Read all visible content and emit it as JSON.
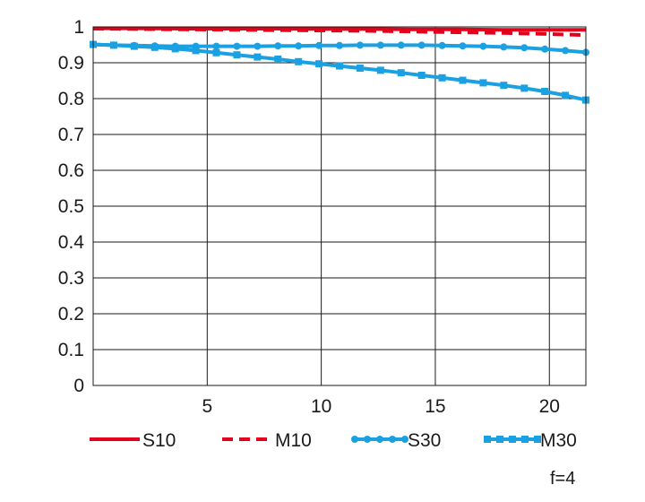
{
  "chart_data": {
    "type": "line",
    "xlim": [
      0,
      21.6
    ],
    "ylim": [
      0,
      1
    ],
    "grid": true,
    "x_ticks": [
      "5",
      "10",
      "15",
      "20"
    ],
    "y_ticks": [
      "0",
      "0.1",
      "0.2",
      "0.3",
      "0.4",
      "0.5",
      "0.6",
      "0.7",
      "0.8",
      "0.9",
      "1"
    ],
    "legend_position": "bottom",
    "note": "f=4",
    "series": [
      {
        "name": "S10",
        "color": "#e3001b",
        "style": "solid",
        "marker": "none",
        "x": [
          0,
          2,
          4,
          6,
          8,
          10,
          12,
          14,
          16,
          18,
          20,
          21.6
        ],
        "y": [
          0.996,
          0.996,
          0.995,
          0.995,
          0.995,
          0.994,
          0.994,
          0.993,
          0.993,
          0.992,
          0.992,
          0.992
        ]
      },
      {
        "name": "M10",
        "color": "#e3001b",
        "style": "dashed",
        "marker": "none",
        "x": [
          0,
          2,
          4,
          6,
          8,
          10,
          12,
          14,
          16,
          18,
          20,
          21.6
        ],
        "y": [
          0.995,
          0.994,
          0.993,
          0.992,
          0.991,
          0.99,
          0.989,
          0.987,
          0.985,
          0.983,
          0.98,
          0.977
        ]
      },
      {
        "name": "S30",
        "color": "#1ba1e2",
        "style": "solid",
        "marker": "circle",
        "x": [
          0,
          0.9,
          1.8,
          2.7,
          3.6,
          4.5,
          5.4,
          6.3,
          7.2,
          8.1,
          9.0,
          9.9,
          10.8,
          11.7,
          12.6,
          13.5,
          14.4,
          15.3,
          16.2,
          17.1,
          18.0,
          18.9,
          19.8,
          20.7,
          21.6
        ],
        "y": [
          0.951,
          0.949,
          0.948,
          0.947,
          0.946,
          0.946,
          0.946,
          0.946,
          0.946,
          0.947,
          0.947,
          0.948,
          0.948,
          0.949,
          0.949,
          0.949,
          0.949,
          0.948,
          0.947,
          0.946,
          0.944,
          0.942,
          0.938,
          0.934,
          0.929
        ]
      },
      {
        "name": "M30",
        "color": "#1ba1e2",
        "style": "solid",
        "marker": "square",
        "x": [
          0,
          0.9,
          1.8,
          2.7,
          3.6,
          4.5,
          5.4,
          6.3,
          7.2,
          8.1,
          9.0,
          9.9,
          10.8,
          11.7,
          12.6,
          13.5,
          14.4,
          15.3,
          16.2,
          17.1,
          18.0,
          18.9,
          19.8,
          20.7,
          21.6
        ],
        "y": [
          0.951,
          0.949,
          0.946,
          0.943,
          0.939,
          0.934,
          0.928,
          0.922,
          0.916,
          0.91,
          0.903,
          0.897,
          0.891,
          0.885,
          0.879,
          0.872,
          0.865,
          0.858,
          0.851,
          0.844,
          0.837,
          0.829,
          0.82,
          0.809,
          0.796
        ]
      }
    ]
  }
}
